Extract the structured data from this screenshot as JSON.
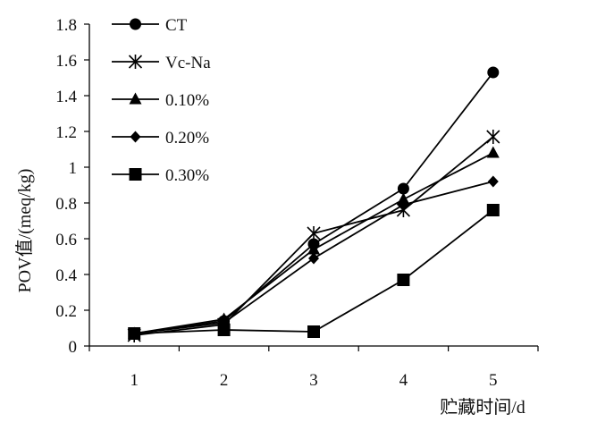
{
  "chart_data": {
    "type": "line",
    "categories": [
      "1",
      "2",
      "3",
      "4",
      "5"
    ],
    "series": [
      {
        "name": "CT",
        "marker": "circle",
        "values": [
          0.07,
          0.14,
          0.57,
          0.88,
          1.53
        ]
      },
      {
        "name": "Vc-Na",
        "marker": "asterisk",
        "values": [
          0.06,
          0.12,
          0.63,
          0.76,
          1.17
        ]
      },
      {
        "name": "0.10%",
        "marker": "triangle",
        "values": [
          0.07,
          0.15,
          0.54,
          0.82,
          1.08
        ]
      },
      {
        "name": "0.20%",
        "marker": "diamond",
        "values": [
          0.07,
          0.13,
          0.49,
          0.79,
          0.92
        ]
      },
      {
        "name": "0.30%",
        "marker": "square",
        "values": [
          0.07,
          0.09,
          0.08,
          0.37,
          0.76
        ]
      }
    ],
    "title": "",
    "xlabel": "贮藏时间/d",
    "ylabel": "POV值/(meq/kg)",
    "ylim": [
      0,
      1.8
    ],
    "yticks": [
      "0",
      "0.2",
      "0.4",
      "0.6",
      "0.8",
      "1",
      "1.2",
      "1.4",
      "1.6",
      "1.8"
    ],
    "legend_position": "top-left",
    "grid": false,
    "line_color": "#000000"
  }
}
